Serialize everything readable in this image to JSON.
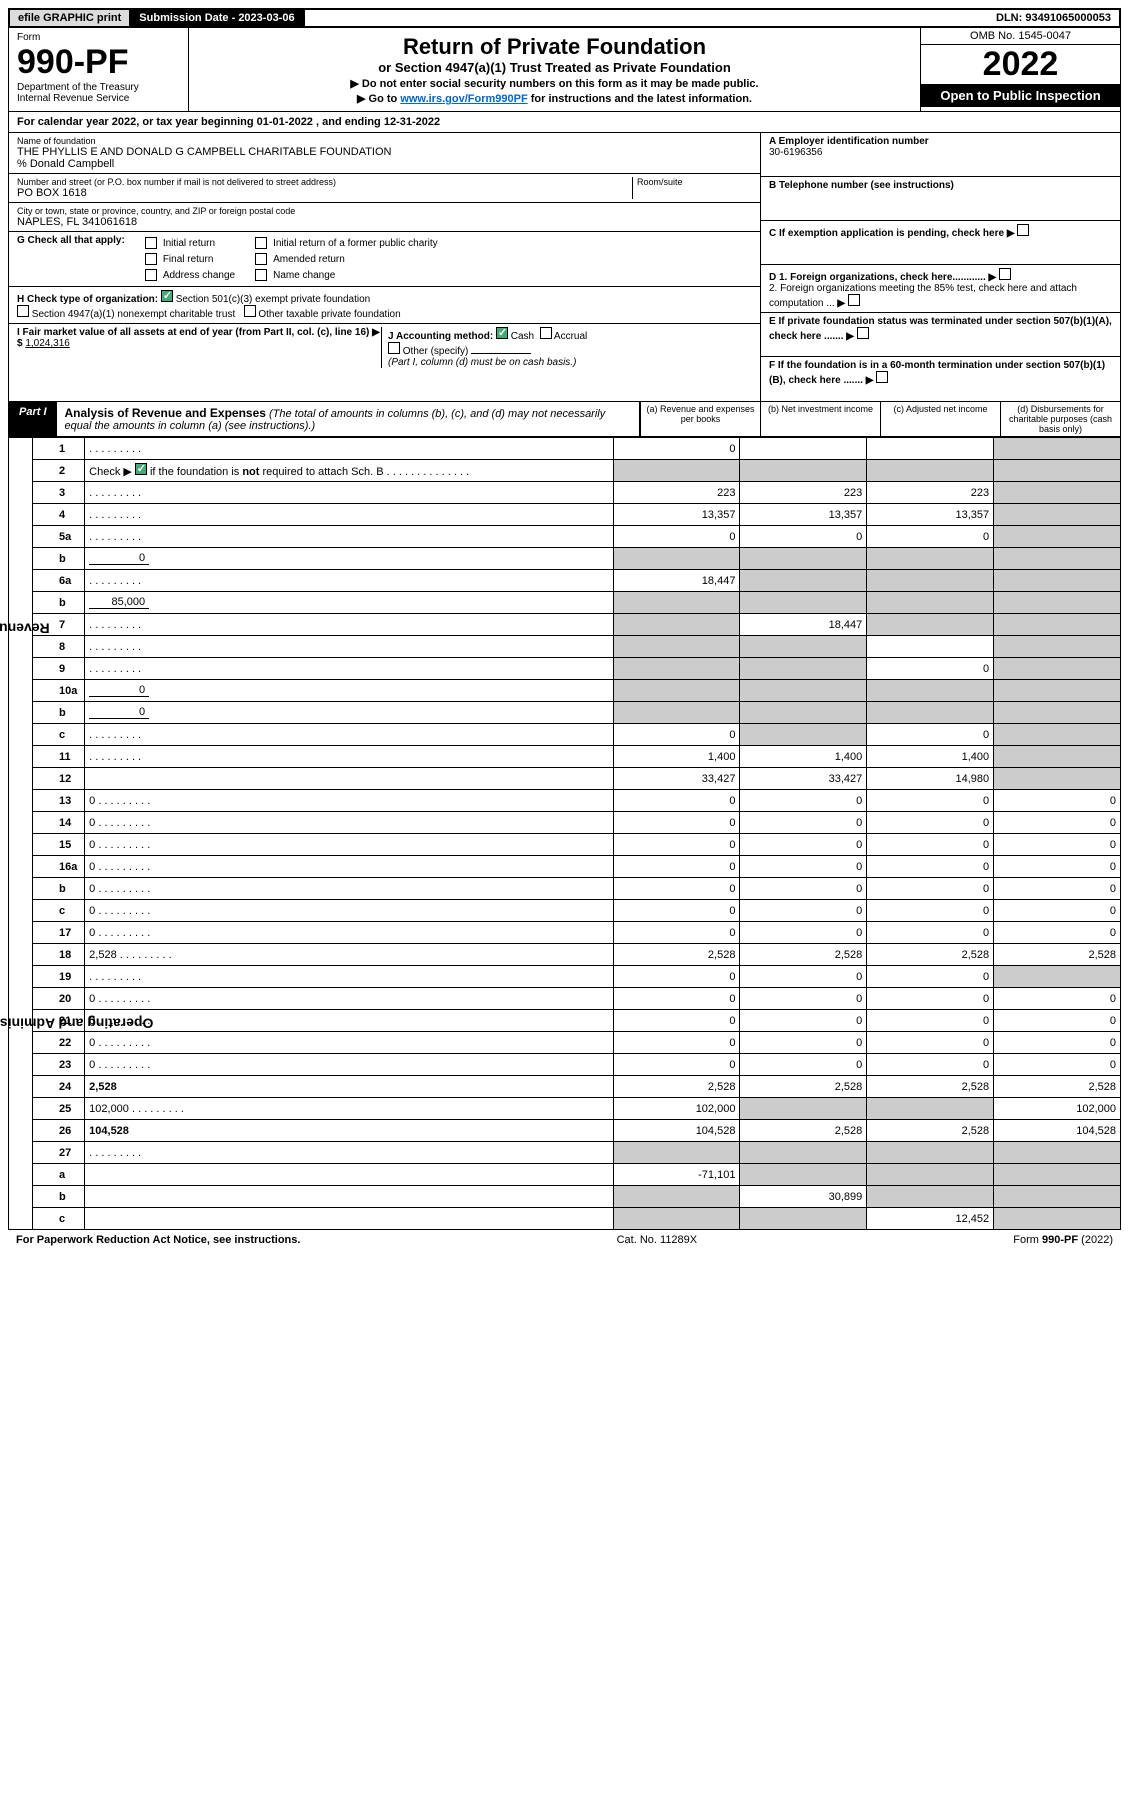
{
  "topbar": {
    "efile": "efile GRAPHIC print",
    "submission_label": "Submission Date - 2023-03-06",
    "dln": "DLN: 93491065000053"
  },
  "header": {
    "form_word": "Form",
    "form_no": "990-PF",
    "dept": "Department of the Treasury",
    "irs": "Internal Revenue Service",
    "title": "Return of Private Foundation",
    "subtitle": "or Section 4947(a)(1) Trust Treated as Private Foundation",
    "line1": "▶ Do not enter social security numbers on this form as it may be made public.",
    "line2_pre": "▶ Go to ",
    "line2_link": "www.irs.gov/Form990PF",
    "line2_post": " for instructions and the latest information.",
    "omb": "OMB No. 1545-0047",
    "year": "2022",
    "open": "Open to Public Inspection"
  },
  "calendar": {
    "pre": "For calendar year 2022, or tax year beginning ",
    "begin": "01-01-2022",
    "mid": " , and ending ",
    "end": "12-31-2022"
  },
  "foundation": {
    "name_label": "Name of foundation",
    "name": "THE PHYLLIS E AND DONALD G CAMPBELL CHARITABLE FOUNDATION",
    "care_of": "% Donald Campbell",
    "addr_label": "Number and street (or P.O. box number if mail is not delivered to street address)",
    "addr": "PO BOX 1618",
    "room_label": "Room/suite",
    "city_label": "City or town, state or province, country, and ZIP or foreign postal code",
    "city": "NAPLES, FL  341061618"
  },
  "rightboxes": {
    "A_label": "A Employer identification number",
    "A_val": "30-6196356",
    "B_label": "B Telephone number (see instructions)",
    "C_label": "C If exemption application is pending, check here",
    "D1": "D 1. Foreign organizations, check here............",
    "D2": "2. Foreign organizations meeting the 85% test, check here and attach computation ...",
    "E": "E If private foundation status was terminated under section 507(b)(1)(A), check here .......",
    "F": "F If the foundation is in a 60-month termination under section 507(b)(1)(B), check here .......",
    "arrow": "▶"
  },
  "checks": {
    "G_label": "G Check all that apply:",
    "initial": "Initial return",
    "final": "Final return",
    "address": "Address change",
    "initial_public": "Initial return of a former public charity",
    "amended": "Amended return",
    "name_change": "Name change",
    "H_label": "H Check type of organization:",
    "h1": "Section 501(c)(3) exempt private foundation",
    "h2": "Section 4947(a)(1) nonexempt charitable trust",
    "h3": "Other taxable private foundation",
    "I_label": "I Fair market value of all assets at end of year (from Part II, col. (c), line 16) ▶ $ ",
    "I_val": "1,024,316",
    "J_label": "J Accounting method:",
    "cash": "Cash",
    "accrual": "Accrual",
    "other": "Other (specify)",
    "J_note": "(Part I, column (d) must be on cash basis.)"
  },
  "part1": {
    "label": "Part I",
    "title": "Analysis of Revenue and Expenses",
    "note": " (The total of amounts in columns (b), (c), and (d) may not necessarily equal the amounts in column (a) (see instructions).)",
    "cols": {
      "a": "(a) Revenue and expenses per books",
      "b": "(b) Net investment income",
      "c": "(c) Adjusted net income",
      "d": "(d) Disbursements for charitable purposes (cash basis only)"
    }
  },
  "side_labels": {
    "rev": "Revenue",
    "exp": "Operating and Administrative Expenses"
  },
  "rows": [
    {
      "n": "1",
      "d": "",
      "a": "0",
      "b": "",
      "c": "",
      "shadeD": true
    },
    {
      "n": "2",
      "d": "",
      "a": "",
      "b": "",
      "c": "",
      "allshade": true,
      "checked": true
    },
    {
      "n": "3",
      "d": "",
      "a": "223",
      "b": "223",
      "c": "223",
      "shadeD": true
    },
    {
      "n": "4",
      "d": "",
      "a": "13,357",
      "b": "13,357",
      "c": "13,357",
      "shadeD": true
    },
    {
      "n": "5a",
      "d": "",
      "a": "0",
      "b": "0",
      "c": "0",
      "shadeD": true
    },
    {
      "n": "b",
      "d": "",
      "inline": "0",
      "a": "",
      "b": "",
      "c": "",
      "allshade": true
    },
    {
      "n": "6a",
      "d": "",
      "a": "18,447",
      "b": "",
      "c": "",
      "shadeBCD": true
    },
    {
      "n": "b",
      "d": "",
      "inline": "85,000",
      "a": "",
      "b": "",
      "c": "",
      "allshade": true
    },
    {
      "n": "7",
      "d": "",
      "a": "",
      "b": "18,447",
      "c": "",
      "shadeACD": true
    },
    {
      "n": "8",
      "d": "",
      "a": "",
      "b": "",
      "c": "",
      "shadeABD": true
    },
    {
      "n": "9",
      "d": "",
      "a": "",
      "b": "",
      "c": "0",
      "shadeABD": true
    },
    {
      "n": "10a",
      "d": "",
      "inline": "0",
      "a": "",
      "b": "",
      "c": "",
      "allshade": true
    },
    {
      "n": "b",
      "d": "",
      "inline": "0",
      "a": "",
      "b": "",
      "c": "",
      "allshade": true
    },
    {
      "n": "c",
      "d": "",
      "a": "0",
      "b": "",
      "c": "0",
      "shadeBD": true
    },
    {
      "n": "11",
      "d": "",
      "a": "1,400",
      "b": "1,400",
      "c": "1,400",
      "shadeD": true
    },
    {
      "n": "12",
      "d": "",
      "a": "33,427",
      "b": "33,427",
      "c": "14,980",
      "shadeD": true,
      "bold": true
    },
    {
      "n": "13",
      "d": "0",
      "a": "0",
      "b": "0",
      "c": "0"
    },
    {
      "n": "14",
      "d": "0",
      "a": "0",
      "b": "0",
      "c": "0"
    },
    {
      "n": "15",
      "d": "0",
      "a": "0",
      "b": "0",
      "c": "0"
    },
    {
      "n": "16a",
      "d": "0",
      "a": "0",
      "b": "0",
      "c": "0"
    },
    {
      "n": "b",
      "d": "0",
      "a": "0",
      "b": "0",
      "c": "0"
    },
    {
      "n": "c",
      "d": "0",
      "a": "0",
      "b": "0",
      "c": "0"
    },
    {
      "n": "17",
      "d": "0",
      "a": "0",
      "b": "0",
      "c": "0"
    },
    {
      "n": "18",
      "d": "2,528",
      "a": "2,528",
      "b": "2,528",
      "c": "2,528"
    },
    {
      "n": "19",
      "d": "",
      "a": "0",
      "b": "0",
      "c": "0",
      "shadeD": true
    },
    {
      "n": "20",
      "d": "0",
      "a": "0",
      "b": "0",
      "c": "0"
    },
    {
      "n": "21",
      "d": "0",
      "a": "0",
      "b": "0",
      "c": "0"
    },
    {
      "n": "22",
      "d": "0",
      "a": "0",
      "b": "0",
      "c": "0"
    },
    {
      "n": "23",
      "d": "0",
      "a": "0",
      "b": "0",
      "c": "0"
    },
    {
      "n": "24",
      "d": "2,528",
      "a": "2,528",
      "b": "2,528",
      "c": "2,528",
      "bold": true
    },
    {
      "n": "25",
      "d": "102,000",
      "a": "102,000",
      "b": "",
      "c": "",
      "shadeBC": true
    },
    {
      "n": "26",
      "d": "104,528",
      "a": "104,528",
      "b": "2,528",
      "c": "2,528",
      "bold": true
    },
    {
      "n": "27",
      "d": "",
      "a": "",
      "b": "",
      "c": "",
      "allshade": true
    },
    {
      "n": "a",
      "d": "",
      "a": "-71,101",
      "b": "",
      "c": "",
      "shadeBCD": true,
      "bold": true
    },
    {
      "n": "b",
      "d": "",
      "a": "",
      "b": "30,899",
      "c": "",
      "shadeACD": true,
      "bold": true
    },
    {
      "n": "c",
      "d": "",
      "a": "",
      "b": "",
      "c": "12,452",
      "shadeABD": true,
      "bold": true
    }
  ],
  "footer": {
    "left": "For Paperwork Reduction Act Notice, see instructions.",
    "mid": "Cat. No. 11289X",
    "right": "Form 990-PF (2022)"
  },
  "colors": {
    "shade": "#cccccc",
    "link": "#0066cc",
    "checked": "#44aa77"
  }
}
